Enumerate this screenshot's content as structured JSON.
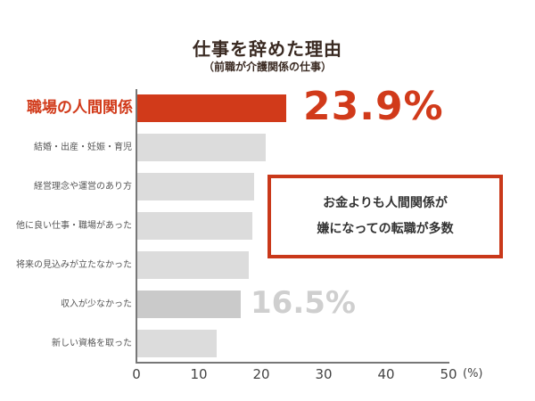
{
  "header": {
    "title": "仕事を辞めた理由",
    "subtitle": "（前職が介護関係の仕事）"
  },
  "callout": {
    "line1": "お金よりも人間関係が",
    "line2": "嫌になっての転職が多数"
  },
  "annotations": {
    "highlight_value": "23.9%",
    "secondary_value": "16.5%"
  },
  "axis": {
    "ticks": [
      "0",
      "10",
      "20",
      "30",
      "40",
      "50"
    ],
    "unit": "(%)"
  },
  "colors": {
    "highlight": "#d13a1a",
    "secondary": "#cacaca",
    "default": "#dcdcdc",
    "callout_border": "#c9381a",
    "title": "#3a2a22"
  },
  "chart_data": {
    "type": "bar",
    "orientation": "horizontal",
    "title": "仕事を辞めた理由",
    "subtitle": "（前職が介護関係の仕事）",
    "categories": [
      "職場の人間関係",
      "結婚・出産・妊娠・育児",
      "経営理念や運営のあり方",
      "他に良い仕事・職場があった",
      "将来の見込みが立たなかった",
      "収入が少なかった",
      "新しい資格を取った"
    ],
    "values": [
      23.9,
      20.6,
      18.7,
      18.4,
      17.8,
      16.5,
      12.7
    ],
    "xlabel": "(%)",
    "ylabel": "",
    "xlim": [
      0,
      50
    ],
    "xticks": [
      0,
      10,
      20,
      30,
      40,
      50
    ],
    "grid": false,
    "legend": null,
    "annotations": [
      {
        "category": "職場の人間関係",
        "text": "23.9%"
      },
      {
        "category": "収入が少なかった",
        "text": "16.5%"
      },
      {
        "text": "お金よりも人間関係が嫌になっての転職が多数"
      }
    ]
  }
}
